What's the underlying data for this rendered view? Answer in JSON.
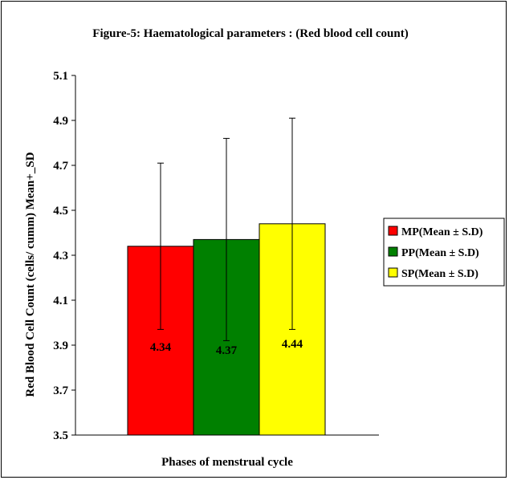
{
  "chart_data": {
    "type": "bar",
    "title": "Figure-5: Haematological parameters : (Red blood cell count)",
    "xlabel": "Phases of menstrual cycle",
    "ylabel": "Red Blood Cell Count (cells/ cumm) Mean+_SD",
    "ylim": [
      3.5,
      5.1
    ],
    "yticks": [
      "3.5",
      "3.7",
      "3.9",
      "4.1",
      "4.3",
      "4.5",
      "4.7",
      "4.9",
      "5.1"
    ],
    "grid": false,
    "legend_position": "right",
    "series": [
      {
        "name": "MP(Mean ± S.D)",
        "value": 4.34,
        "label": "4.34",
        "error_low": 3.97,
        "error_high": 4.71,
        "color": "#ff0000"
      },
      {
        "name": "PP(Mean ± S.D)",
        "value": 4.37,
        "label": "4.37",
        "error_low": 3.92,
        "error_high": 4.82,
        "color": "#008000"
      },
      {
        "name": "SP(Mean ± S.D)",
        "value": 4.44,
        "label": "4.44",
        "error_low": 3.97,
        "error_high": 4.91,
        "color": "#ffff00"
      }
    ]
  }
}
